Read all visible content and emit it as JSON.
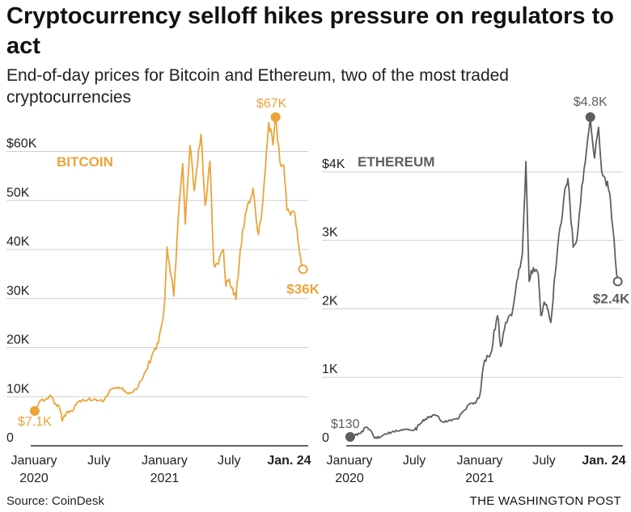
{
  "headline": "Cryptocurrency selloff hikes pressure on regulators to act",
  "subheadline": "End-of-day prices for Bitcoin and Ethereum, two of the most traded cryptocurrencies",
  "source": "Source: CoinDesk",
  "credit": "THE WASHINGTON POST",
  "colors": {
    "bitcoin": "#eaa43a",
    "ethereum": "#5e5e5e",
    "grid": "#cfcfcf",
    "axis": "#333333"
  },
  "chart_data": [
    {
      "type": "line",
      "series_label": "BITCOIN",
      "color": "#eaa43a",
      "ylim": [
        0,
        67000
      ],
      "y_ticks": [
        0,
        10000,
        20000,
        30000,
        40000,
        50000,
        60000
      ],
      "y_tick_labels": [
        "0",
        "10K",
        "20K",
        "30K",
        "40K",
        "50K",
        "$60K"
      ],
      "x_ticks": [
        "2020-01-01",
        "2020-07-01",
        "2021-01-01",
        "2021-07-01",
        "2022-01-24"
      ],
      "x_tick_labels": [
        "January\n2020",
        "July",
        "January\n2021",
        "July",
        "Jan. 24"
      ],
      "annotations": [
        {
          "x": "2020-01-03",
          "y": 7100,
          "label": "$7.1K",
          "marker": "filled"
        },
        {
          "x": "2021-11-08",
          "y": 67000,
          "label": "$67K",
          "marker": "filled"
        },
        {
          "x": "2022-01-24",
          "y": 36000,
          "label": "$36K",
          "marker": "open"
        }
      ],
      "x": [
        "2020-01-01",
        "2020-01-15",
        "2020-02-01",
        "2020-02-15",
        "2020-03-01",
        "2020-03-12",
        "2020-03-20",
        "2020-04-01",
        "2020-04-15",
        "2020-05-01",
        "2020-05-15",
        "2020-06-01",
        "2020-06-15",
        "2020-07-01",
        "2020-07-15",
        "2020-08-01",
        "2020-08-15",
        "2020-09-01",
        "2020-09-15",
        "2020-10-01",
        "2020-10-15",
        "2020-11-01",
        "2020-11-15",
        "2020-12-01",
        "2020-12-15",
        "2021-01-01",
        "2021-01-08",
        "2021-01-15",
        "2021-01-27",
        "2021-02-08",
        "2021-02-21",
        "2021-02-28",
        "2021-03-13",
        "2021-03-25",
        "2021-04-13",
        "2021-04-25",
        "2021-05-08",
        "2021-05-19",
        "2021-06-01",
        "2021-06-15",
        "2021-06-22",
        "2021-07-01",
        "2021-07-20",
        "2021-08-01",
        "2021-08-15",
        "2021-09-06",
        "2021-09-21",
        "2021-10-01",
        "2021-10-20",
        "2021-11-01",
        "2021-11-08",
        "2021-11-20",
        "2021-12-01",
        "2021-12-10",
        "2021-12-20",
        "2022-01-01",
        "2022-01-10",
        "2022-01-21",
        "2022-01-24"
      ],
      "values": [
        7200,
        8800,
        9400,
        10300,
        8600,
        7900,
        5000,
        6800,
        7100,
        8800,
        9300,
        9500,
        9400,
        9200,
        9200,
        11400,
        11800,
        11700,
        10800,
        10800,
        11500,
        13700,
        16000,
        19200,
        21000,
        29000,
        40500,
        36800,
        30500,
        46200,
        57500,
        45200,
        61200,
        52000,
        63500,
        49000,
        58000,
        37000,
        37000,
        40000,
        32500,
        34000,
        29800,
        40000,
        47000,
        52500,
        43000,
        48000,
        65900,
        61300,
        67000,
        58000,
        57200,
        48000,
        47000,
        47500,
        41800,
        36000,
        36000
      ]
    },
    {
      "type": "line",
      "series_label": "ETHEREUM",
      "color": "#5e5e5e",
      "ylim": [
        0,
        4800
      ],
      "y_ticks": [
        0,
        1000,
        2000,
        3000,
        4000
      ],
      "y_tick_labels": [
        "0",
        "1K",
        "2K",
        "3K",
        "$4K"
      ],
      "x_ticks": [
        "2020-01-01",
        "2020-07-01",
        "2021-01-01",
        "2021-07-01",
        "2022-01-24"
      ],
      "x_tick_labels": [
        "January\n2020",
        "July",
        "January\n2021",
        "July",
        "Jan. 24"
      ],
      "annotations": [
        {
          "x": "2020-01-03",
          "y": 130,
          "label": "$130",
          "marker": "filled"
        },
        {
          "x": "2021-11-08",
          "y": 4800,
          "label": "$4.8K",
          "marker": "filled"
        },
        {
          "x": "2022-01-24",
          "y": 2400,
          "label": "$2.4K",
          "marker": "open"
        }
      ],
      "x": [
        "2020-01-01",
        "2020-02-01",
        "2020-02-15",
        "2020-03-01",
        "2020-03-12",
        "2020-04-01",
        "2020-05-01",
        "2020-06-01",
        "2020-07-01",
        "2020-08-01",
        "2020-08-15",
        "2020-09-01",
        "2020-09-15",
        "2020-10-01",
        "2020-11-01",
        "2020-11-20",
        "2020-12-01",
        "2020-12-20",
        "2021-01-01",
        "2021-01-15",
        "2021-02-01",
        "2021-02-20",
        "2021-03-01",
        "2021-03-15",
        "2021-04-01",
        "2021-04-15",
        "2021-05-01",
        "2021-05-11",
        "2021-05-20",
        "2021-06-01",
        "2021-06-15",
        "2021-06-22",
        "2021-07-01",
        "2021-07-20",
        "2021-08-01",
        "2021-08-15",
        "2021-09-01",
        "2021-09-06",
        "2021-09-21",
        "2021-10-01",
        "2021-10-15",
        "2021-10-28",
        "2021-11-08",
        "2021-11-20",
        "2021-12-01",
        "2021-12-10",
        "2021-12-20",
        "2022-01-01",
        "2022-01-10",
        "2022-01-21",
        "2022-01-24"
      ],
      "values": [
        130,
        180,
        270,
        220,
        110,
        140,
        210,
        240,
        230,
        390,
        430,
        440,
        360,
        350,
        390,
        520,
        600,
        620,
        730,
        1250,
        1350,
        1900,
        1450,
        1800,
        1900,
        2400,
        2800,
        4150,
        2400,
        2600,
        2500,
        1900,
        2100,
        1800,
        2500,
        3200,
        3800,
        3900,
        2900,
        3000,
        3800,
        4300,
        4800,
        4200,
        4650,
        4000,
        3900,
        3700,
        3200,
        2500,
        2400
      ]
    }
  ]
}
